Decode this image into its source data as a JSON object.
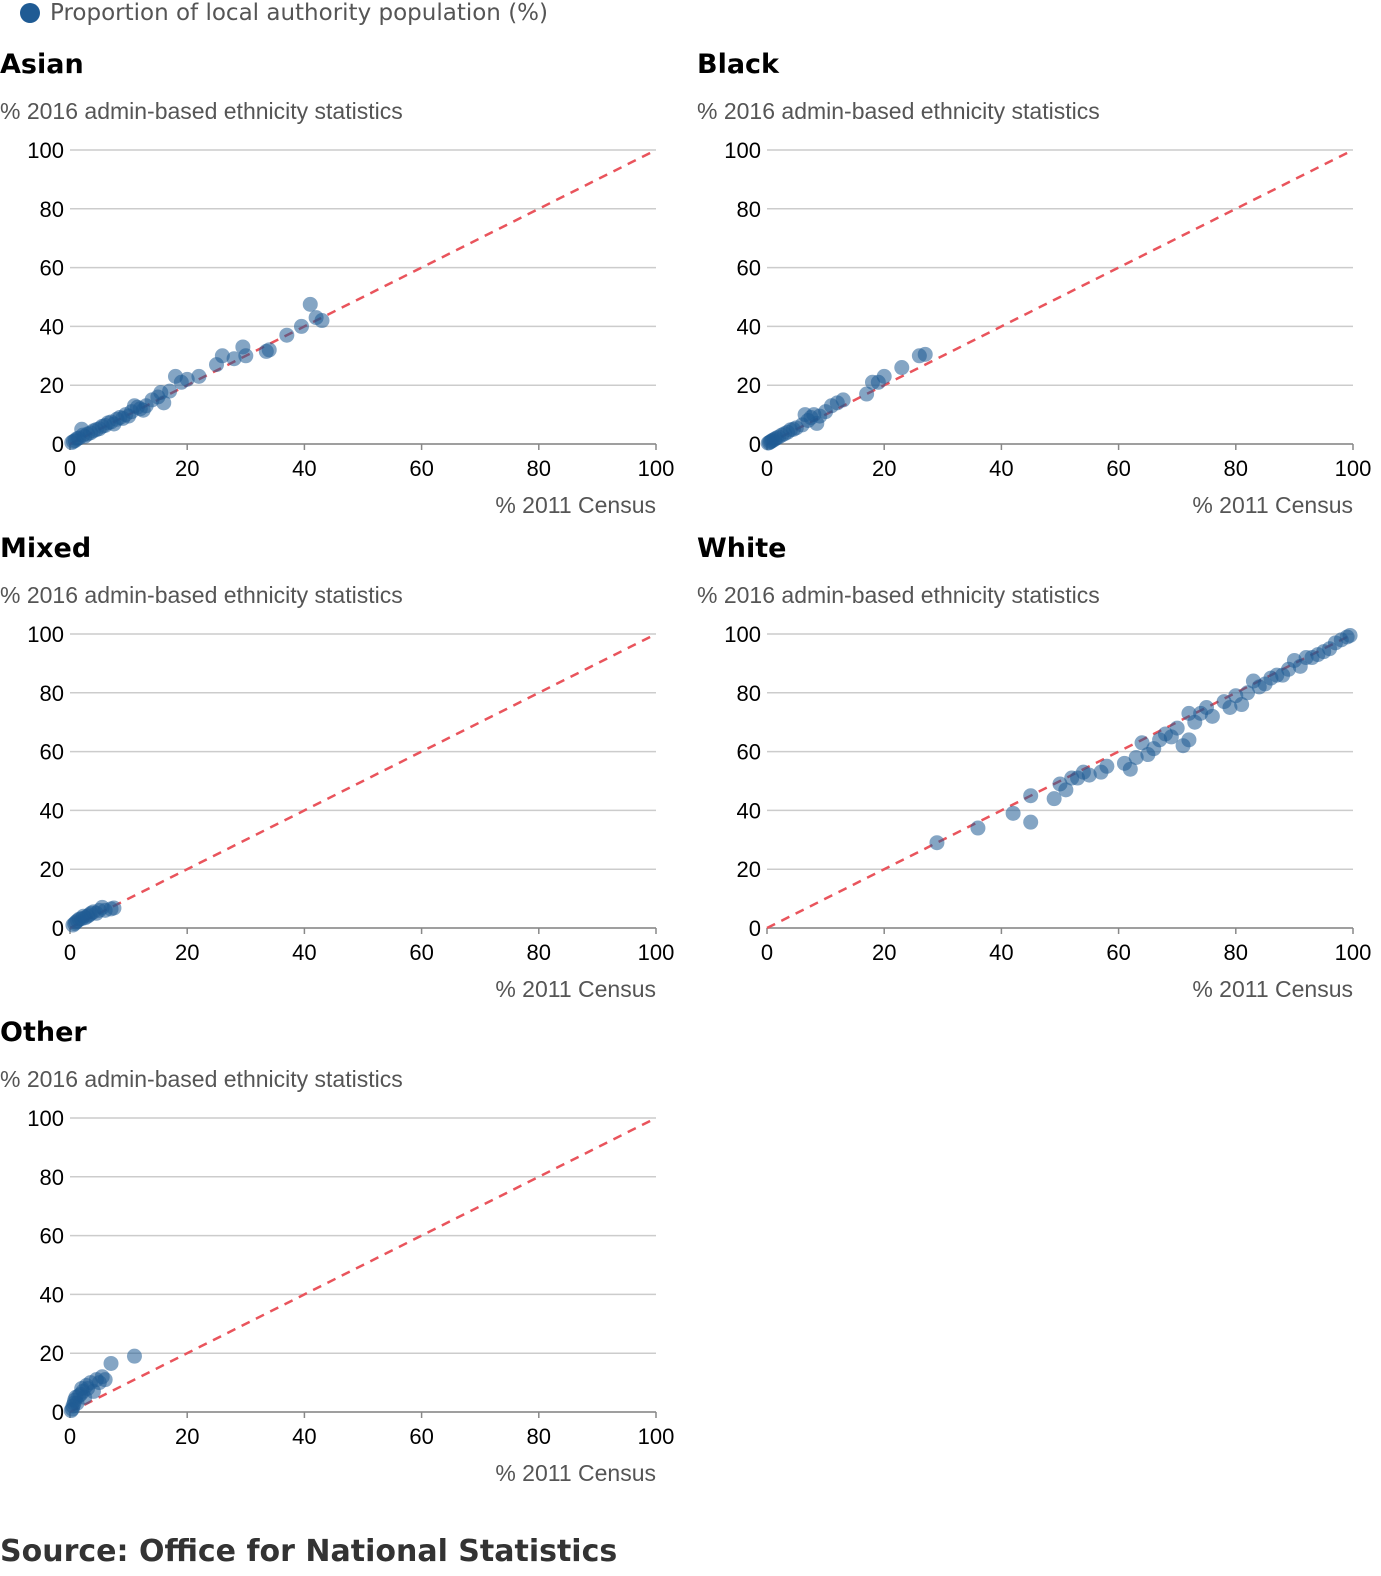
{
  "legend": {
    "label": "Proportion of local authority population (%)",
    "color": "#1f5b94"
  },
  "source": "Source: Office for National Statistics",
  "colors": {
    "point": "#1f5b94",
    "reference_line": "#e9545c",
    "grid": "#cccccc"
  },
  "chart_data": [
    {
      "type": "scatter",
      "title": "Asian",
      "ylabel": "% 2016 admin-based ethnicity statistics",
      "xlabel": "% 2011 Census",
      "xlim": [
        0,
        100
      ],
      "ylim": [
        0,
        100
      ],
      "xticks": [
        "0",
        "20",
        "40",
        "60",
        "80",
        "100"
      ],
      "yticks": [
        "0",
        "20",
        "40",
        "60",
        "80",
        "100"
      ],
      "reference_line": "y = x",
      "points": [
        [
          0.3,
          0.5
        ],
        [
          0.6,
          0.9
        ],
        [
          0.9,
          1.2
        ],
        [
          1.2,
          1.8
        ],
        [
          1.5,
          2.0
        ],
        [
          2,
          5
        ],
        [
          2.2,
          3
        ],
        [
          2.5,
          2.6
        ],
        [
          3,
          3.4
        ],
        [
          3.5,
          3.8
        ],
        [
          4,
          4.5
        ],
        [
          4.5,
          4.9
        ],
        [
          5,
          5.2
        ],
        [
          5.5,
          6
        ],
        [
          6,
          6.3
        ],
        [
          6.5,
          7.2
        ],
        [
          7,
          7.5
        ],
        [
          7.5,
          6.8
        ],
        [
          8,
          8.4
        ],
        [
          8.5,
          9
        ],
        [
          9,
          8.7
        ],
        [
          9.5,
          10
        ],
        [
          10,
          9.5
        ],
        [
          10.5,
          11
        ],
        [
          11,
          13
        ],
        [
          11.5,
          12.5
        ],
        [
          12,
          12
        ],
        [
          12.5,
          11.5
        ],
        [
          13,
          13
        ],
        [
          14,
          15
        ],
        [
          15,
          16
        ],
        [
          15.5,
          17.5
        ],
        [
          16,
          14
        ],
        [
          17,
          18
        ],
        [
          18,
          23
        ],
        [
          19,
          21
        ],
        [
          20,
          22
        ],
        [
          22,
          23
        ],
        [
          25,
          27
        ],
        [
          26,
          30
        ],
        [
          28,
          29
        ],
        [
          29.5,
          33
        ],
        [
          30,
          30
        ],
        [
          33.5,
          31.5
        ],
        [
          34,
          32
        ],
        [
          37,
          37
        ],
        [
          39.5,
          40
        ],
        [
          41,
          47.5
        ],
        [
          42,
          43
        ],
        [
          43,
          42
        ]
      ]
    },
    {
      "type": "scatter",
      "title": "Black",
      "ylabel": "% 2016 admin-based ethnicity statistics",
      "xlabel": "% 2011 Census",
      "xlim": [
        0,
        100
      ],
      "ylim": [
        0,
        100
      ],
      "xticks": [
        "0",
        "20",
        "40",
        "60",
        "80",
        "100"
      ],
      "yticks": [
        "0",
        "20",
        "40",
        "60",
        "80",
        "100"
      ],
      "reference_line": "y = x",
      "points": [
        [
          0.2,
          0.3
        ],
        [
          0.4,
          0.5
        ],
        [
          0.6,
          0.8
        ],
        [
          0.8,
          1
        ],
        [
          1,
          1.3
        ],
        [
          1.3,
          1.6
        ],
        [
          1.6,
          2
        ],
        [
          2,
          2.4
        ],
        [
          2.5,
          3
        ],
        [
          3,
          3.5
        ],
        [
          3.5,
          4
        ],
        [
          4,
          4.8
        ],
        [
          4.5,
          5
        ],
        [
          5,
          5.5
        ],
        [
          6,
          6.5
        ],
        [
          6.5,
          10
        ],
        [
          7,
          8
        ],
        [
          7.5,
          9
        ],
        [
          8,
          10
        ],
        [
          8.5,
          7
        ],
        [
          9,
          9.5
        ],
        [
          10,
          11
        ],
        [
          11,
          13
        ],
        [
          12,
          14
        ],
        [
          13,
          15
        ],
        [
          17,
          17
        ],
        [
          18,
          21
        ],
        [
          19,
          21
        ],
        [
          20,
          23
        ],
        [
          23,
          26
        ],
        [
          26,
          30
        ],
        [
          27,
          30.5
        ]
      ]
    },
    {
      "type": "scatter",
      "title": "Mixed",
      "ylabel": "% 2016 admin-based ethnicity statistics",
      "xlabel": "% 2011 Census",
      "xlim": [
        0,
        100
      ],
      "ylim": [
        0,
        100
      ],
      "xticks": [
        "0",
        "20",
        "40",
        "60",
        "80",
        "100"
      ],
      "yticks": [
        "0",
        "20",
        "40",
        "60",
        "80",
        "100"
      ],
      "reference_line": "y = x",
      "points": [
        [
          0.5,
          1
        ],
        [
          0.8,
          1.5
        ],
        [
          1,
          2
        ],
        [
          1.3,
          2.5
        ],
        [
          1.6,
          3
        ],
        [
          2,
          3.2
        ],
        [
          2.3,
          4
        ],
        [
          2.6,
          3.5
        ],
        [
          3,
          4
        ],
        [
          3.3,
          4.5
        ],
        [
          3.6,
          5
        ],
        [
          4,
          5.5
        ],
        [
          4.5,
          5
        ],
        [
          5,
          6
        ],
        [
          5.5,
          7
        ],
        [
          6,
          6
        ],
        [
          7,
          6.5
        ],
        [
          7.5,
          6.8
        ]
      ]
    },
    {
      "type": "scatter",
      "title": "White",
      "ylabel": "% 2016 admin-based ethnicity statistics",
      "xlabel": "% 2011 Census",
      "xlim": [
        0,
        100
      ],
      "ylim": [
        0,
        100
      ],
      "xticks": [
        "0",
        "20",
        "40",
        "60",
        "80",
        "100"
      ],
      "yticks": [
        "0",
        "20",
        "40",
        "60",
        "80",
        "100"
      ],
      "reference_line": "y = x",
      "points": [
        [
          29,
          29
        ],
        [
          36,
          34
        ],
        [
          42,
          39
        ],
        [
          45,
          36
        ],
        [
          45,
          45
        ],
        [
          49,
          44
        ],
        [
          50,
          49
        ],
        [
          51,
          47
        ],
        [
          52,
          51
        ],
        [
          53,
          51
        ],
        [
          54,
          53
        ],
        [
          55,
          52
        ],
        [
          57,
          53
        ],
        [
          58,
          55
        ],
        [
          61,
          56
        ],
        [
          62,
          54
        ],
        [
          63,
          58
        ],
        [
          64,
          63
        ],
        [
          65,
          59
        ],
        [
          66,
          61
        ],
        [
          67,
          64
        ],
        [
          68,
          66
        ],
        [
          69,
          65
        ],
        [
          70,
          68
        ],
        [
          71,
          62
        ],
        [
          72,
          64
        ],
        [
          72,
          73
        ],
        [
          73,
          70
        ],
        [
          74,
          73
        ],
        [
          75,
          75
        ],
        [
          76,
          72
        ],
        [
          78,
          77
        ],
        [
          79,
          75
        ],
        [
          80,
          79
        ],
        [
          81,
          76
        ],
        [
          82,
          80
        ],
        [
          83,
          84
        ],
        [
          84,
          82
        ],
        [
          85,
          83
        ],
        [
          86,
          85
        ],
        [
          87,
          86
        ],
        [
          88,
          86
        ],
        [
          89,
          88
        ],
        [
          90,
          91
        ],
        [
          91,
          89
        ],
        [
          92,
          92
        ],
        [
          93,
          92
        ],
        [
          94,
          93
        ],
        [
          95,
          94
        ],
        [
          96,
          95
        ],
        [
          97,
          97
        ],
        [
          98,
          98
        ],
        [
          99,
          99
        ],
        [
          99.5,
          99.5
        ]
      ]
    },
    {
      "type": "scatter",
      "title": "Other",
      "ylabel": "% 2016 admin-based ethnicity statistics",
      "xlabel": "% 2011 Census",
      "xlim": [
        0,
        100
      ],
      "ylim": [
        0,
        100
      ],
      "xticks": [
        "0",
        "20",
        "40",
        "60",
        "80",
        "100"
      ],
      "yticks": [
        "0",
        "20",
        "40",
        "60",
        "80",
        "100"
      ],
      "reference_line": "y = x",
      "points": [
        [
          0.2,
          0.5
        ],
        [
          0.4,
          1
        ],
        [
          0.5,
          2
        ],
        [
          0.7,
          3
        ],
        [
          0.8,
          4
        ],
        [
          1,
          5
        ],
        [
          1.2,
          3
        ],
        [
          1.5,
          5.5
        ],
        [
          1.8,
          6
        ],
        [
          2,
          8
        ],
        [
          2.2,
          7
        ],
        [
          2.5,
          5
        ],
        [
          2.8,
          9
        ],
        [
          3,
          8
        ],
        [
          3.5,
          10
        ],
        [
          4,
          7
        ],
        [
          4.5,
          11
        ],
        [
          5,
          10
        ],
        [
          5.5,
          12
        ],
        [
          6,
          11
        ],
        [
          7,
          16.5
        ],
        [
          11,
          19
        ]
      ]
    }
  ]
}
